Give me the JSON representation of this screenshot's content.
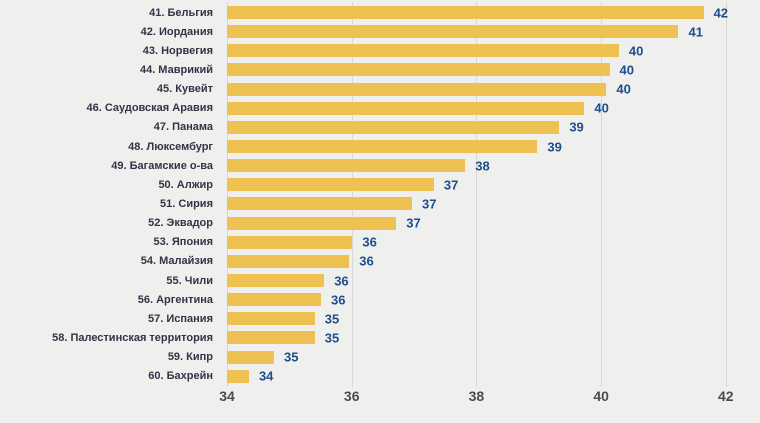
{
  "chart_data": {
    "type": "bar",
    "orientation": "horizontal",
    "title": "",
    "xlabel": "",
    "ylabel": "",
    "xlim": [
      34,
      42.5
    ],
    "xticks": [
      "34",
      "36",
      "38",
      "40",
      "42"
    ],
    "xtick_values": [
      34,
      36,
      38,
      40,
      42
    ],
    "grid": true,
    "legend": false,
    "categories": [
      "41. Бельгия",
      "42. Иордания",
      "43. Норвегия",
      "44. Маврикий",
      "45. Кувейт",
      "46. Саудовская Аравия",
      "47. Панама",
      "48. Люксембург",
      "49. Багамские о-ва",
      "50. Алжир",
      "51. Сирия",
      "52. Эквадор",
      "53. Япония",
      "54. Малайзия",
      "55. Чили",
      "56. Аргентина",
      "57. Испания",
      "58. Палестинская территория",
      "59. Кипр",
      "60. Бахрейн"
    ],
    "values": [
      42,
      41,
      40,
      40,
      40,
      40,
      39,
      39,
      38,
      37,
      37,
      37,
      36,
      36,
      36,
      36,
      35,
      35,
      35,
      34
    ],
    "rows": [
      {
        "category": "41. Бельгия",
        "value_label": "42",
        "value": 41.6
      },
      {
        "category": "42. Иордания",
        "value_label": "41",
        "value": 41.2
      },
      {
        "category": "43. Норвегия",
        "value_label": "40",
        "value": 40.25
      },
      {
        "category": "44. Маврикий",
        "value_label": "40",
        "value": 40.1
      },
      {
        "category": "45. Кувейт",
        "value_label": "40",
        "value": 40.05
      },
      {
        "category": "46. Саудовская Аравия",
        "value_label": "40",
        "value": 39.7
      },
      {
        "category": "47. Панама",
        "value_label": "39",
        "value": 39.3
      },
      {
        "category": "48. Люксембург",
        "value_label": "39",
        "value": 38.95
      },
      {
        "category": "49. Багамские о-ва",
        "value_label": "38",
        "value": 37.8
      },
      {
        "category": "50. Алжир",
        "value_label": "37",
        "value": 37.3
      },
      {
        "category": "51. Сирия",
        "value_label": "37",
        "value": 36.95
      },
      {
        "category": "52. Эквадор",
        "value_label": "37",
        "value": 36.7
      },
      {
        "category": "53. Япония",
        "value_label": "36",
        "value": 36.0
      },
      {
        "category": "54. Малайзия",
        "value_label": "36",
        "value": 35.95
      },
      {
        "category": "55. Чили",
        "value_label": "36",
        "value": 35.55
      },
      {
        "category": "56. Аргентина",
        "value_label": "36",
        "value": 35.5
      },
      {
        "category": "57. Испания",
        "value_label": "35",
        "value": 35.4
      },
      {
        "category": "58. Палестинская территория",
        "value_label": "35",
        "value": 35.4
      },
      {
        "category": "59. Кипр",
        "value_label": "35",
        "value": 34.75
      },
      {
        "category": "60. Бахрейн",
        "value_label": "34",
        "value": 34.35
      }
    ],
    "colors": {
      "bar": "#efc052",
      "value_label": "#1d4e8c",
      "category_label": "#333347",
      "tick_label": "#4b4b4b",
      "gridline": "#d8d8d6",
      "background": "#efefee"
    }
  }
}
